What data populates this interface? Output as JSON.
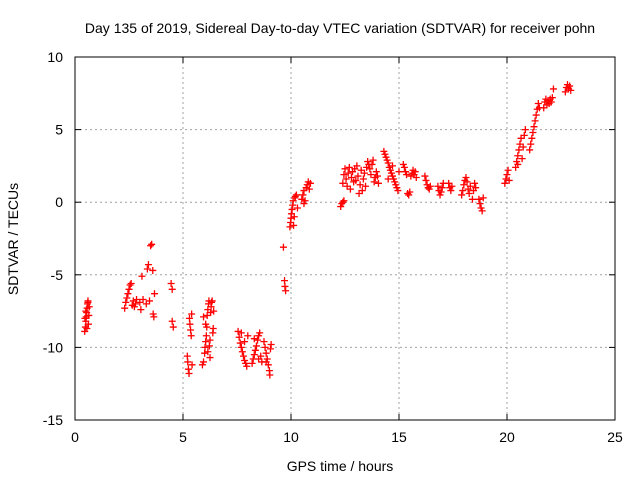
{
  "chart_data": {
    "type": "scatter",
    "title": "Day 135 of 2019, Sidereal Day-to-day VTEC variation (SDTVAR) for receiver pohn",
    "xlabel": "GPS time / hours",
    "ylabel": "SDTVAR / TECUs",
    "xlim": [
      0,
      25
    ],
    "ylim": [
      -15,
      10
    ],
    "xticks": [
      0,
      5,
      10,
      15,
      20,
      25
    ],
    "yticks": [
      -15,
      -10,
      -5,
      0,
      5,
      10
    ],
    "grid": true,
    "marker": "+",
    "color": "#ff0000",
    "series": [
      {
        "name": "SDTVAR",
        "points": [
          [
            0.45,
            -8.9
          ],
          [
            0.48,
            -8.6
          ],
          [
            0.5,
            -8.2
          ],
          [
            0.52,
            -7.9
          ],
          [
            0.54,
            -7.6
          ],
          [
            0.56,
            -7.3
          ],
          [
            0.58,
            -7.0
          ],
          [
            0.6,
            -6.8
          ],
          [
            0.62,
            -8.4
          ],
          [
            0.64,
            -7.8
          ],
          [
            0.66,
            -7.2
          ],
          [
            0.46,
            -8.0
          ],
          [
            0.5,
            -7.5
          ],
          [
            0.55,
            -8.7
          ],
          [
            0.6,
            -6.9
          ],
          [
            2.3,
            -7.3
          ],
          [
            2.35,
            -6.9
          ],
          [
            2.4,
            -6.6
          ],
          [
            2.45,
            -6.3
          ],
          [
            2.5,
            -6.0
          ],
          [
            2.55,
            -5.7
          ],
          [
            2.6,
            -5.6
          ],
          [
            2.65,
            -7.1
          ],
          [
            2.7,
            -6.8
          ],
          [
            2.75,
            -7.2
          ],
          [
            2.8,
            -7.0
          ],
          [
            2.85,
            -6.7
          ],
          [
            3.0,
            -6.9
          ],
          [
            3.05,
            -7.4
          ],
          [
            3.1,
            -5.1
          ],
          [
            3.15,
            -6.7
          ],
          [
            3.3,
            -7.0
          ],
          [
            3.35,
            -4.6
          ],
          [
            3.4,
            -4.3
          ],
          [
            3.45,
            -6.8
          ],
          [
            3.5,
            -3.0
          ],
          [
            3.55,
            -2.9
          ],
          [
            3.6,
            -4.7
          ],
          [
            3.62,
            -7.7
          ],
          [
            3.65,
            -7.9
          ],
          [
            3.68,
            -6.3
          ],
          [
            4.45,
            -5.6
          ],
          [
            4.5,
            -6.0
          ],
          [
            4.5,
            -8.2
          ],
          [
            4.55,
            -8.6
          ],
          [
            5.2,
            -10.6
          ],
          [
            5.22,
            -11.0
          ],
          [
            5.25,
            -11.5
          ],
          [
            5.28,
            -11.8
          ],
          [
            5.3,
            -8.0
          ],
          [
            5.32,
            -8.4
          ],
          [
            5.35,
            -8.8
          ],
          [
            5.38,
            -9.2
          ],
          [
            5.4,
            -7.7
          ],
          [
            5.42,
            -11.2
          ],
          [
            5.9,
            -11.2
          ],
          [
            5.95,
            -11.0
          ],
          [
            6.0,
            -10.4
          ],
          [
            6.02,
            -10.0
          ],
          [
            6.05,
            -9.6
          ],
          [
            6.08,
            -9.2
          ],
          [
            6.1,
            -8.6
          ],
          [
            6.12,
            -7.8
          ],
          [
            6.15,
            -7.4
          ],
          [
            6.18,
            -7.0
          ],
          [
            6.2,
            -6.8
          ],
          [
            6.22,
            -9.9
          ],
          [
            6.25,
            -9.5
          ],
          [
            6.28,
            -7.6
          ],
          [
            6.3,
            -7.2
          ],
          [
            6.32,
            -6.9
          ],
          [
            6.35,
            -6.8
          ],
          [
            6.38,
            -9.0
          ],
          [
            6.4,
            -8.7
          ],
          [
            6.42,
            -7.5
          ],
          [
            5.95,
            -7.9
          ],
          [
            6.05,
            -8.4
          ],
          [
            6.15,
            -10.3
          ],
          [
            6.25,
            -10.7
          ],
          [
            7.55,
            -8.9
          ],
          [
            7.6,
            -9.3
          ],
          [
            7.65,
            -9.7
          ],
          [
            7.7,
            -10.0
          ],
          [
            7.75,
            -10.3
          ],
          [
            7.8,
            -10.6
          ],
          [
            7.85,
            -10.9
          ],
          [
            7.9,
            -11.1
          ],
          [
            7.95,
            -11.3
          ],
          [
            8.0,
            -9.2
          ],
          [
            7.7,
            -9.0
          ],
          [
            7.85,
            -9.6
          ],
          [
            8.2,
            -11.1
          ],
          [
            8.25,
            -10.8
          ],
          [
            8.3,
            -10.5
          ],
          [
            8.35,
            -10.2
          ],
          [
            8.4,
            -9.9
          ],
          [
            8.45,
            -9.5
          ],
          [
            8.5,
            -9.2
          ],
          [
            8.55,
            -9.0
          ],
          [
            8.6,
            -10.6
          ],
          [
            8.65,
            -11.0
          ],
          [
            8.3,
            -9.4
          ],
          [
            8.5,
            -10.8
          ],
          [
            8.75,
            -9.6
          ],
          [
            8.8,
            -10.0
          ],
          [
            8.85,
            -10.4
          ],
          [
            8.9,
            -10.8
          ],
          [
            8.95,
            -11.2
          ],
          [
            9.0,
            -11.6
          ],
          [
            9.02,
            -11.9
          ],
          [
            9.05,
            -10.1
          ],
          [
            9.08,
            -9.8
          ],
          [
            8.85,
            -11.0
          ],
          [
            9.65,
            -3.1
          ],
          [
            9.7,
            -5.4
          ],
          [
            9.72,
            -5.8
          ],
          [
            9.75,
            -6.1
          ],
          [
            9.95,
            -1.7
          ],
          [
            9.98,
            -1.4
          ],
          [
            10.0,
            -1.1
          ],
          [
            10.02,
            -0.8
          ],
          [
            10.05,
            -0.5
          ],
          [
            10.08,
            -0.2
          ],
          [
            10.1,
            0.1
          ],
          [
            10.12,
            -1.6
          ],
          [
            10.15,
            -1.0
          ],
          [
            10.18,
            0.3
          ],
          [
            10.2,
            0.4
          ],
          [
            10.25,
            0.5
          ],
          [
            10.3,
            -0.4
          ],
          [
            10.5,
            0.2
          ],
          [
            10.55,
            0.5
          ],
          [
            10.6,
            0.8
          ],
          [
            10.65,
            0.1
          ],
          [
            10.7,
            1.0
          ],
          [
            10.75,
            1.2
          ],
          [
            10.8,
            1.4
          ],
          [
            10.85,
            0.9
          ],
          [
            10.9,
            1.3
          ],
          [
            10.6,
            -0.1
          ],
          [
            12.3,
            -0.3
          ],
          [
            12.35,
            -0.1
          ],
          [
            12.4,
            0.0
          ],
          [
            12.45,
            0.1
          ],
          [
            12.4,
            1.3
          ],
          [
            12.45,
            1.9
          ],
          [
            12.5,
            2.3
          ],
          [
            12.55,
            1.6
          ],
          [
            12.6,
            1.1
          ],
          [
            12.65,
            2.0
          ],
          [
            12.7,
            2.4
          ],
          [
            12.75,
            0.9
          ],
          [
            12.8,
            1.7
          ],
          [
            12.85,
            2.1
          ],
          [
            12.9,
            1.4
          ],
          [
            12.95,
            2.3
          ],
          [
            13.0,
            1.5
          ],
          [
            13.05,
            2.5
          ],
          [
            13.1,
            1.8
          ],
          [
            13.15,
            0.6
          ],
          [
            13.2,
            1.2
          ],
          [
            13.25,
            2.2
          ],
          [
            13.3,
            0.8
          ],
          [
            13.35,
            1.6
          ],
          [
            13.4,
            2.0
          ],
          [
            13.45,
            1.1
          ],
          [
            13.5,
            2.4
          ],
          [
            13.55,
            2.8
          ],
          [
            13.6,
            2.6
          ],
          [
            13.65,
            2.3
          ],
          [
            13.7,
            1.9
          ],
          [
            13.75,
            2.6
          ],
          [
            13.8,
            2.9
          ],
          [
            13.85,
            1.4
          ],
          [
            13.9,
            1.7
          ],
          [
            13.95,
            2.1
          ],
          [
            14.0,
            1.8
          ],
          [
            14.05,
            1.3
          ],
          [
            14.3,
            3.5
          ],
          [
            14.35,
            3.3
          ],
          [
            14.4,
            3.1
          ],
          [
            14.45,
            2.9
          ],
          [
            14.5,
            2.7
          ],
          [
            14.55,
            2.4
          ],
          [
            14.6,
            2.2
          ],
          [
            14.65,
            2.0
          ],
          [
            14.7,
            1.8
          ],
          [
            14.75,
            1.6
          ],
          [
            14.8,
            1.4
          ],
          [
            14.85,
            1.2
          ],
          [
            14.9,
            1.0
          ],
          [
            14.95,
            0.8
          ],
          [
            15.0,
            2.1
          ],
          [
            14.5,
            1.6
          ],
          [
            14.7,
            2.5
          ],
          [
            15.2,
            2.6
          ],
          [
            15.25,
            2.4
          ],
          [
            15.3,
            2.1
          ],
          [
            15.35,
            1.9
          ],
          [
            15.4,
            0.6
          ],
          [
            15.45,
            0.5
          ],
          [
            15.5,
            0.7
          ],
          [
            15.55,
            1.8
          ],
          [
            15.6,
            2.0
          ],
          [
            15.65,
            2.2
          ],
          [
            15.7,
            1.9
          ],
          [
            15.75,
            2.1
          ],
          [
            15.8,
            1.7
          ],
          [
            16.2,
            1.8
          ],
          [
            16.25,
            1.5
          ],
          [
            16.3,
            1.2
          ],
          [
            16.35,
            1.0
          ],
          [
            16.4,
            0.9
          ],
          [
            16.45,
            1.1
          ],
          [
            16.8,
            1.1
          ],
          [
            16.85,
            0.8
          ],
          [
            16.9,
            0.5
          ],
          [
            16.95,
            0.7
          ],
          [
            17.0,
            1.0
          ],
          [
            17.05,
            1.3
          ],
          [
            17.3,
            1.3
          ],
          [
            17.35,
            1.0
          ],
          [
            17.4,
            0.8
          ],
          [
            17.45,
            1.1
          ],
          [
            17.9,
            0.5
          ],
          [
            17.95,
            0.8
          ],
          [
            18.0,
            1.2
          ],
          [
            18.05,
            1.5
          ],
          [
            18.1,
            1.7
          ],
          [
            18.15,
            1.4
          ],
          [
            18.2,
            0.9
          ],
          [
            18.25,
            0.6
          ],
          [
            18.3,
            1.1
          ],
          [
            18.4,
            0.2
          ],
          [
            18.45,
            0.8
          ],
          [
            18.5,
            1.3
          ],
          [
            18.55,
            1.0
          ],
          [
            18.7,
            0.2
          ],
          [
            18.75,
            -0.1
          ],
          [
            18.8,
            -0.4
          ],
          [
            18.85,
            -0.6
          ],
          [
            18.9,
            0.3
          ],
          [
            19.9,
            1.3
          ],
          [
            19.95,
            1.6
          ],
          [
            20.0,
            1.9
          ],
          [
            20.05,
            2.2
          ],
          [
            20.1,
            1.5
          ],
          [
            20.4,
            2.4
          ],
          [
            20.45,
            2.8
          ],
          [
            20.5,
            3.2
          ],
          [
            20.55,
            3.6
          ],
          [
            20.6,
            4.0
          ],
          [
            20.65,
            4.4
          ],
          [
            20.7,
            3.0
          ],
          [
            20.75,
            3.8
          ],
          [
            20.8,
            4.6
          ],
          [
            20.85,
            5.0
          ],
          [
            20.5,
            2.6
          ],
          [
            21.05,
            3.6
          ],
          [
            21.1,
            4.0
          ],
          [
            21.15,
            4.4
          ],
          [
            21.2,
            4.8
          ],
          [
            21.25,
            5.2
          ],
          [
            21.3,
            5.6
          ],
          [
            21.35,
            6.0
          ],
          [
            21.4,
            6.4
          ],
          [
            21.45,
            6.8
          ],
          [
            21.5,
            6.5
          ],
          [
            21.7,
            6.5
          ],
          [
            21.75,
            6.9
          ],
          [
            21.8,
            7.1
          ],
          [
            21.85,
            6.7
          ],
          [
            21.9,
            7.0
          ],
          [
            21.95,
            6.8
          ],
          [
            22.0,
            7.1
          ],
          [
            22.05,
            6.9
          ],
          [
            22.1,
            7.2
          ],
          [
            22.15,
            7.8
          ],
          [
            22.7,
            7.6
          ],
          [
            22.75,
            7.9
          ],
          [
            22.8,
            8.1
          ],
          [
            22.85,
            7.8
          ],
          [
            22.9,
            8.0
          ],
          [
            22.95,
            7.7
          ]
        ]
      }
    ]
  }
}
